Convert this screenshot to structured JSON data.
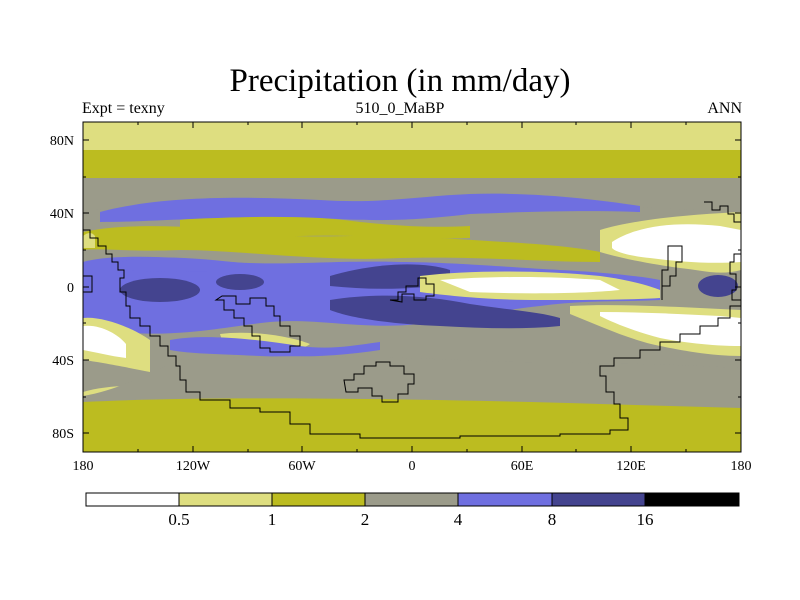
{
  "title": "Precipitation (in mm/day)",
  "subtitle_left": "Expt = texny",
  "subtitle_center": "510_0_MaBP",
  "subtitle_right": "ANN",
  "y_ticks": [
    "80N",
    "40N",
    "0",
    "40S",
    "80S"
  ],
  "x_ticks": [
    "180",
    "120W",
    "60W",
    "0",
    "60E",
    "120E",
    "180"
  ],
  "colorbar": {
    "labels": [
      "0.5",
      "1",
      "2",
      "4",
      "8",
      "16"
    ],
    "colors": [
      "#ffffff",
      "#dede80",
      "#bcbc20",
      "#9b9b8a",
      "#6f6fe0",
      "#44448f",
      "#000000"
    ]
  },
  "palette": {
    "white": "#ffffff",
    "pale_yellow": "#dede80",
    "olive": "#bcbc20",
    "gray": "#9b9b8a",
    "blue": "#6f6fe0",
    "dark_blue": "#44448f",
    "black": "#000000"
  }
}
